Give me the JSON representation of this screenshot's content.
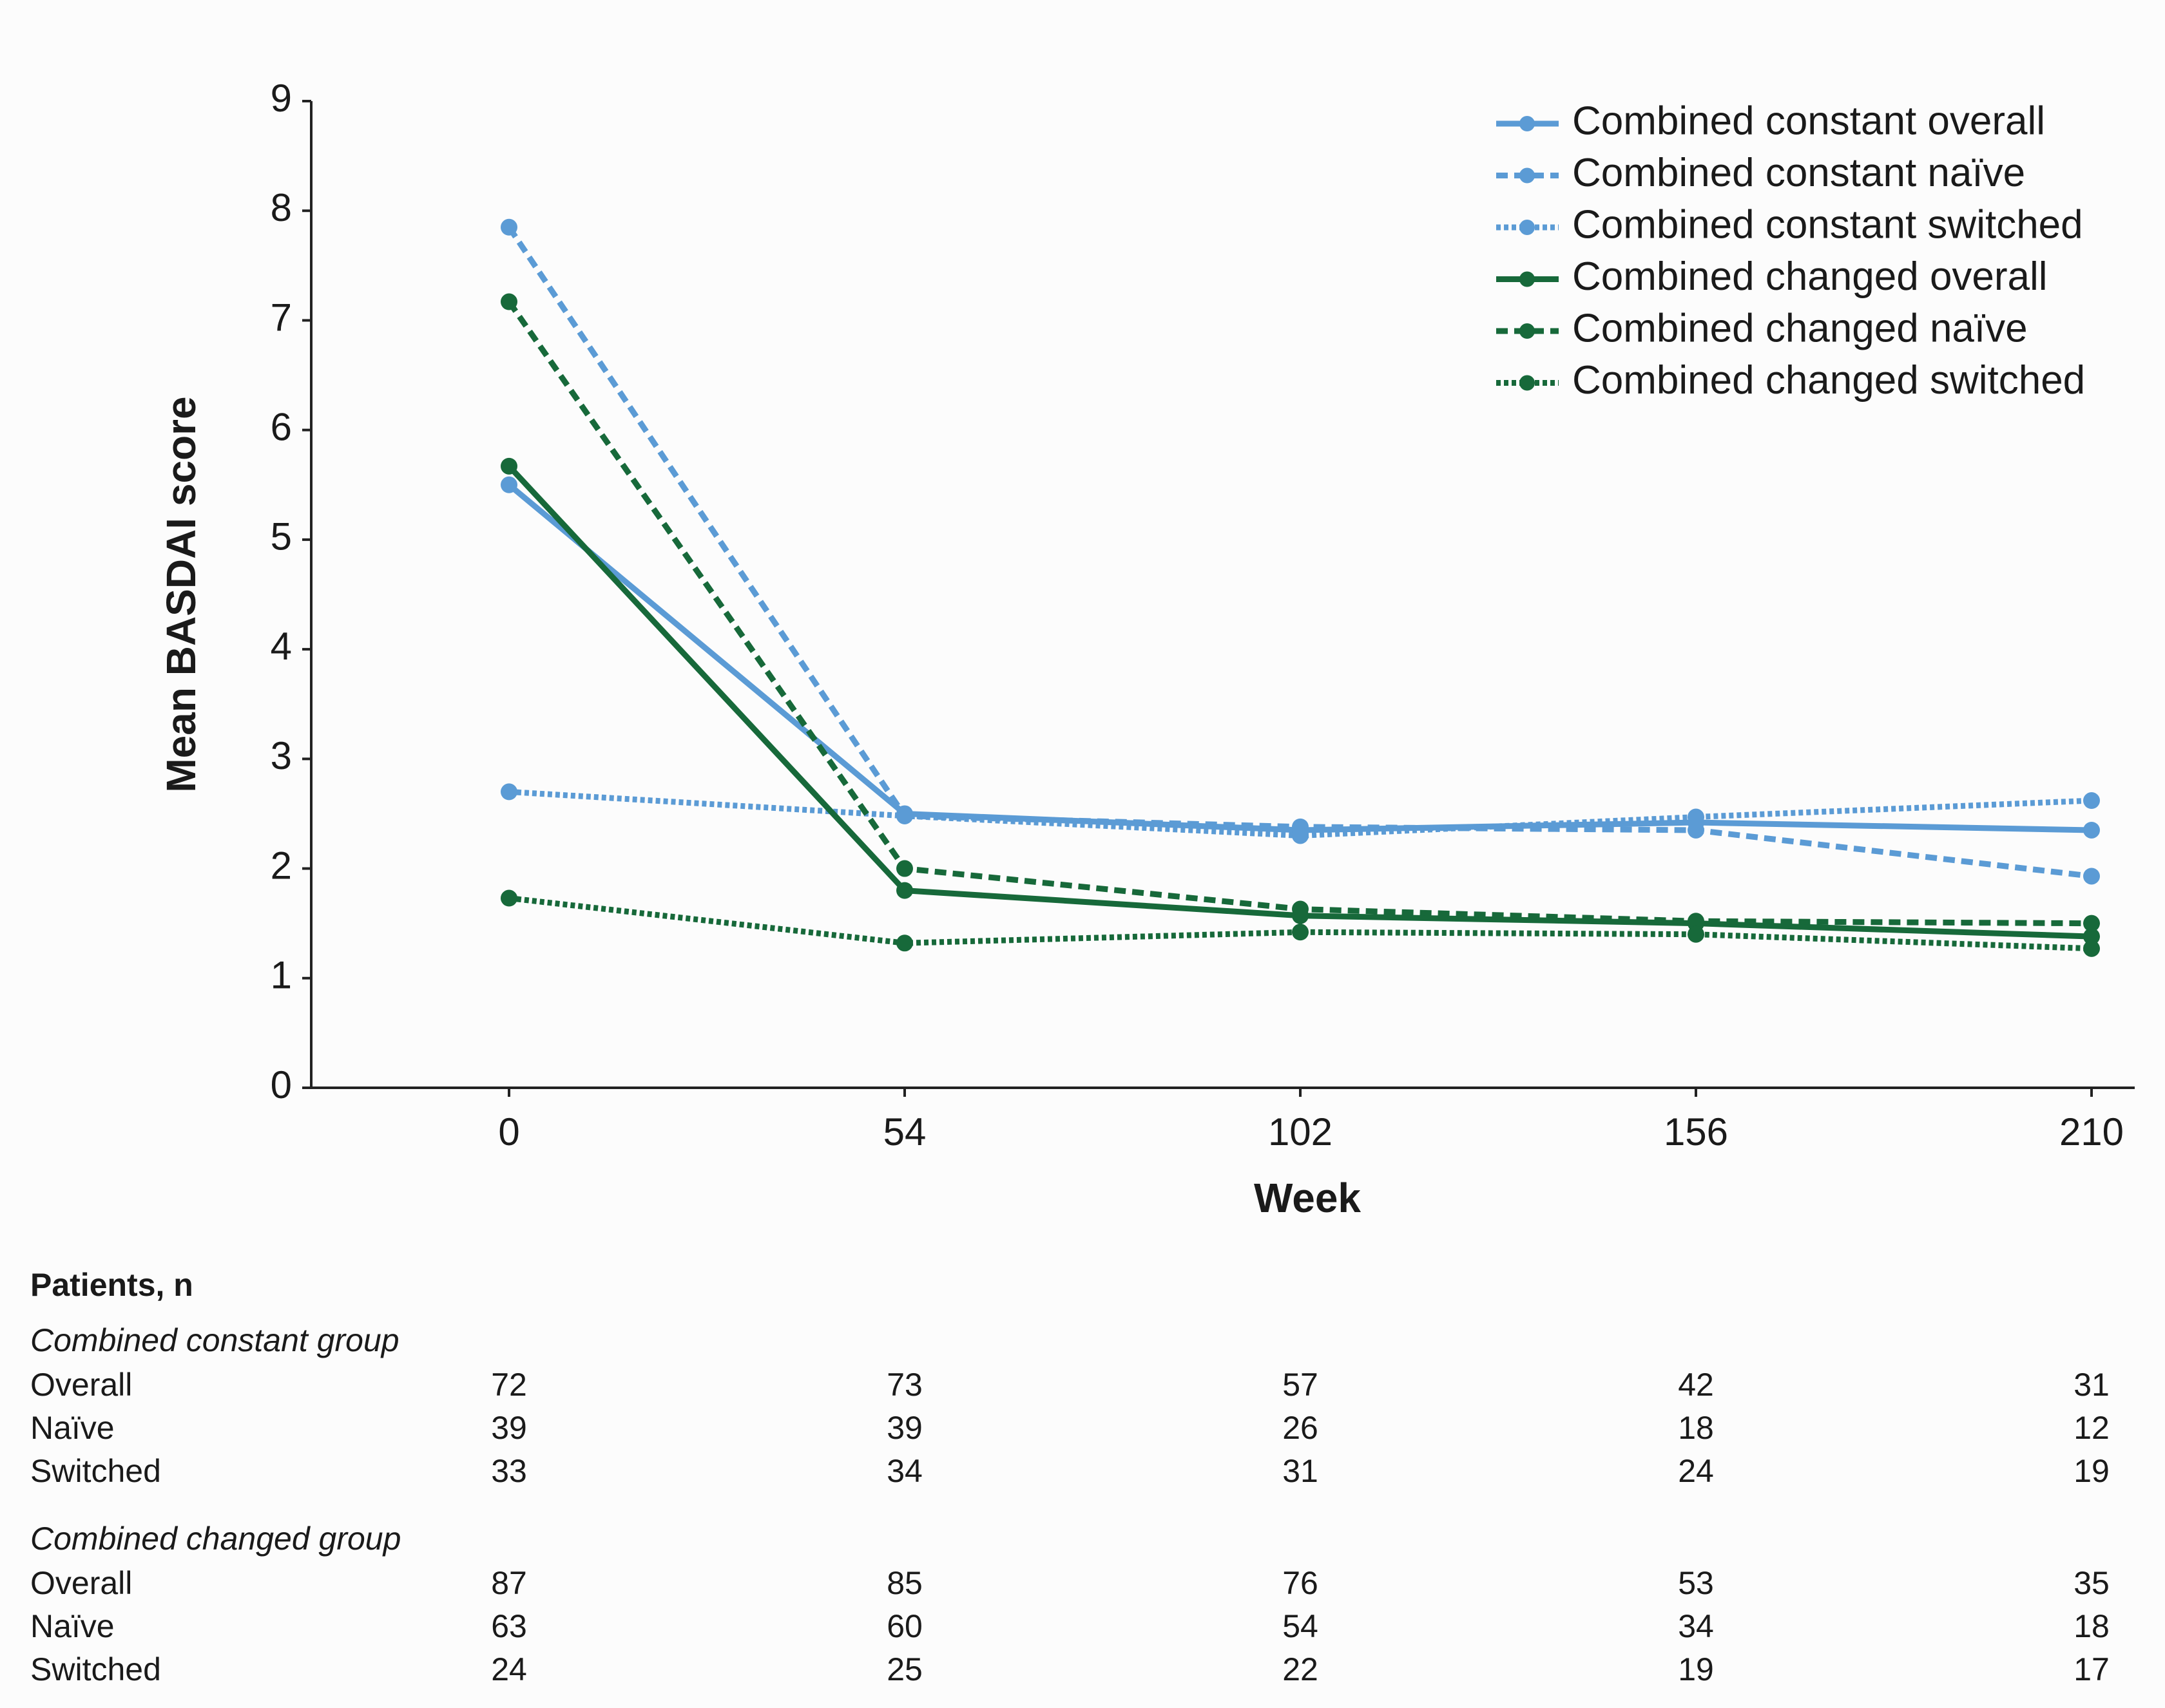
{
  "chart_data": {
    "type": "line",
    "ylabel": "Mean BASDAI score",
    "xlabel": "Week",
    "categories": [
      "0",
      "54",
      "102",
      "156",
      "210"
    ],
    "ylim": [
      0,
      9
    ],
    "yticks": [
      0,
      1,
      2,
      3,
      4,
      5,
      6,
      7,
      8,
      9
    ],
    "grid": false,
    "legend": "upper right",
    "series": [
      {
        "name": "Combined constant overall",
        "color": "#5b9bd5",
        "dash": "solid",
        "values": [
          5.5,
          2.5,
          2.35,
          2.42,
          2.35
        ]
      },
      {
        "name": "Combined constant naïve",
        "color": "#5b9bd5",
        "dash": "dashed",
        "values": [
          7.85,
          2.48,
          2.38,
          2.35,
          1.93
        ]
      },
      {
        "name": "Combined constant switched",
        "color": "#5b9bd5",
        "dash": "dotted",
        "values": [
          2.7,
          2.48,
          2.3,
          2.47,
          2.62
        ]
      },
      {
        "name": "Combined changed overall",
        "color": "#17693a",
        "dash": "solid",
        "values": [
          5.67,
          1.8,
          1.57,
          1.5,
          1.38
        ]
      },
      {
        "name": "Combined changed naïve",
        "color": "#17693a",
        "dash": "dashed",
        "values": [
          7.17,
          2.0,
          1.63,
          1.52,
          1.5
        ]
      },
      {
        "name": "Combined changed switched",
        "color": "#17693a",
        "dash": "dotted",
        "values": [
          1.73,
          1.32,
          1.42,
          1.4,
          1.27
        ]
      }
    ]
  },
  "table": {
    "title": "Patients, n",
    "groups": [
      {
        "name": "Combined constant group",
        "rows": [
          {
            "label": "Overall",
            "values": [
              72,
              73,
              57,
              42,
              31
            ]
          },
          {
            "label": "Naïve",
            "values": [
              39,
              39,
              26,
              18,
              12
            ]
          },
          {
            "label": "Switched",
            "values": [
              33,
              34,
              31,
              24,
              19
            ]
          }
        ]
      },
      {
        "name": "Combined changed group",
        "rows": [
          {
            "label": "Overall",
            "values": [
              87,
              85,
              76,
              53,
              35
            ]
          },
          {
            "label": "Naïve",
            "values": [
              63,
              60,
              54,
              34,
              18
            ]
          },
          {
            "label": "Switched",
            "values": [
              24,
              25,
              22,
              19,
              17
            ]
          }
        ]
      }
    ]
  }
}
